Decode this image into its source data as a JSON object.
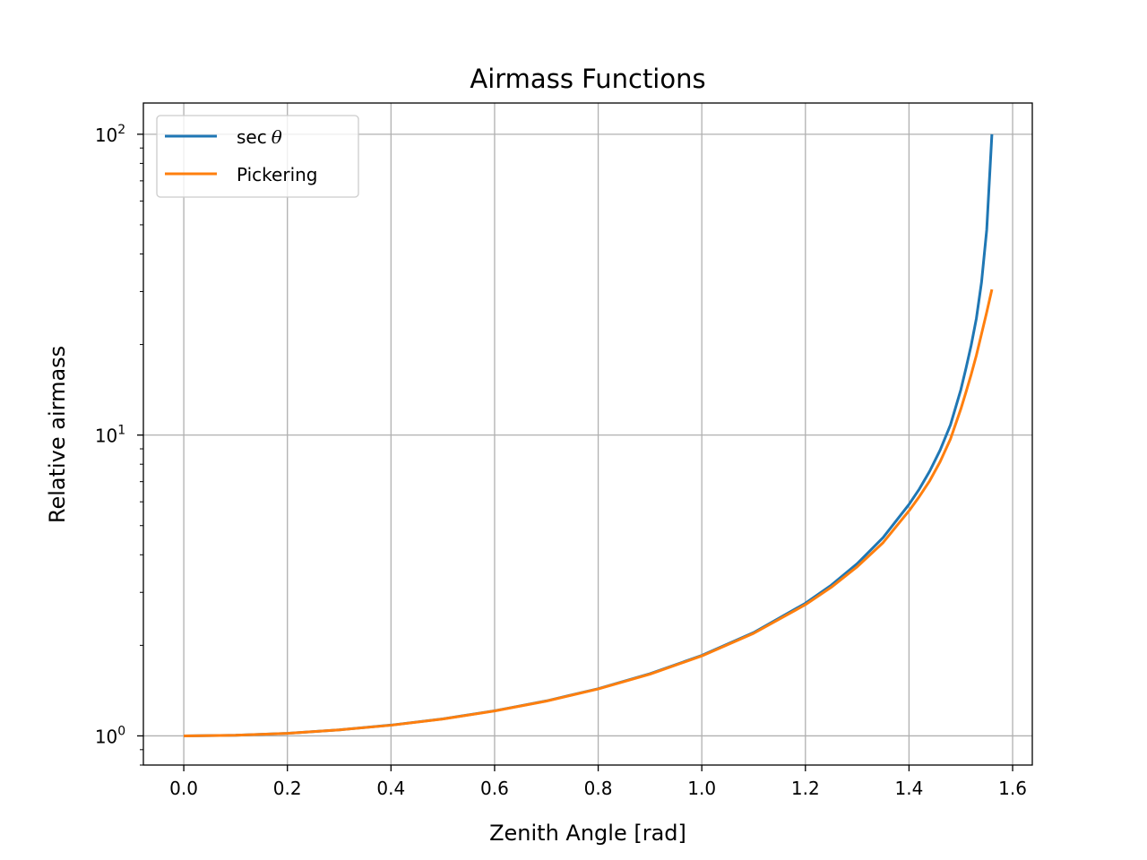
{
  "chart_data": {
    "type": "line",
    "title": "Airmass Functions",
    "xlabel": "Zenith Angle [rad]",
    "ylabel": "Relative airmass",
    "xlim": [
      -0.078,
      1.638
    ],
    "ylim": [
      0.8,
      127
    ],
    "yscale": "log",
    "grid": true,
    "legend_position": "upper-left",
    "x_ticks": [
      0.0,
      0.2,
      0.4,
      0.6,
      0.8,
      1.0,
      1.2,
      1.4,
      1.6
    ],
    "x_tick_labels": [
      "0.0",
      "0.2",
      "0.4",
      "0.6",
      "0.8",
      "1.0",
      "1.2",
      "1.4",
      "1.6"
    ],
    "y_ticks": [
      1,
      10,
      100
    ],
    "y_tick_labels": [
      {
        "base": "10",
        "exp": "0"
      },
      {
        "base": "10",
        "exp": "1"
      },
      {
        "base": "10",
        "exp": "2"
      }
    ],
    "x": [
      0.0,
      0.1,
      0.2,
      0.3,
      0.4,
      0.5,
      0.6,
      0.7,
      0.8,
      0.9,
      1.0,
      1.1,
      1.2,
      1.25,
      1.3,
      1.35,
      1.4,
      1.42,
      1.44,
      1.46,
      1.48,
      1.5,
      1.51,
      1.52,
      1.53,
      1.54,
      1.55,
      1.56
    ],
    "series": [
      {
        "name": "sec θ",
        "name_parts": {
          "func": "sec",
          "var": "θ"
        },
        "color": "#1f77b4",
        "values": [
          1.0,
          1.005,
          1.02,
          1.047,
          1.086,
          1.139,
          1.212,
          1.307,
          1.435,
          1.609,
          1.851,
          2.205,
          2.76,
          3.17,
          3.738,
          4.565,
          5.883,
          6.621,
          7.589,
          8.907,
          10.81,
          14.14,
          16.68,
          19.88,
          24.39,
          32.23,
          48.09,
          100.0
        ]
      },
      {
        "name": "Pickering",
        "color": "#ff7f0e",
        "values": [
          1.0,
          1.005,
          1.02,
          1.047,
          1.085,
          1.138,
          1.21,
          1.305,
          1.432,
          1.604,
          1.844,
          2.192,
          2.73,
          3.12,
          3.65,
          4.39,
          5.6,
          6.25,
          7.05,
          8.15,
          9.7,
          12.2,
          13.9,
          15.9,
          18.4,
          21.7,
          25.6,
          30.5
        ]
      }
    ]
  }
}
